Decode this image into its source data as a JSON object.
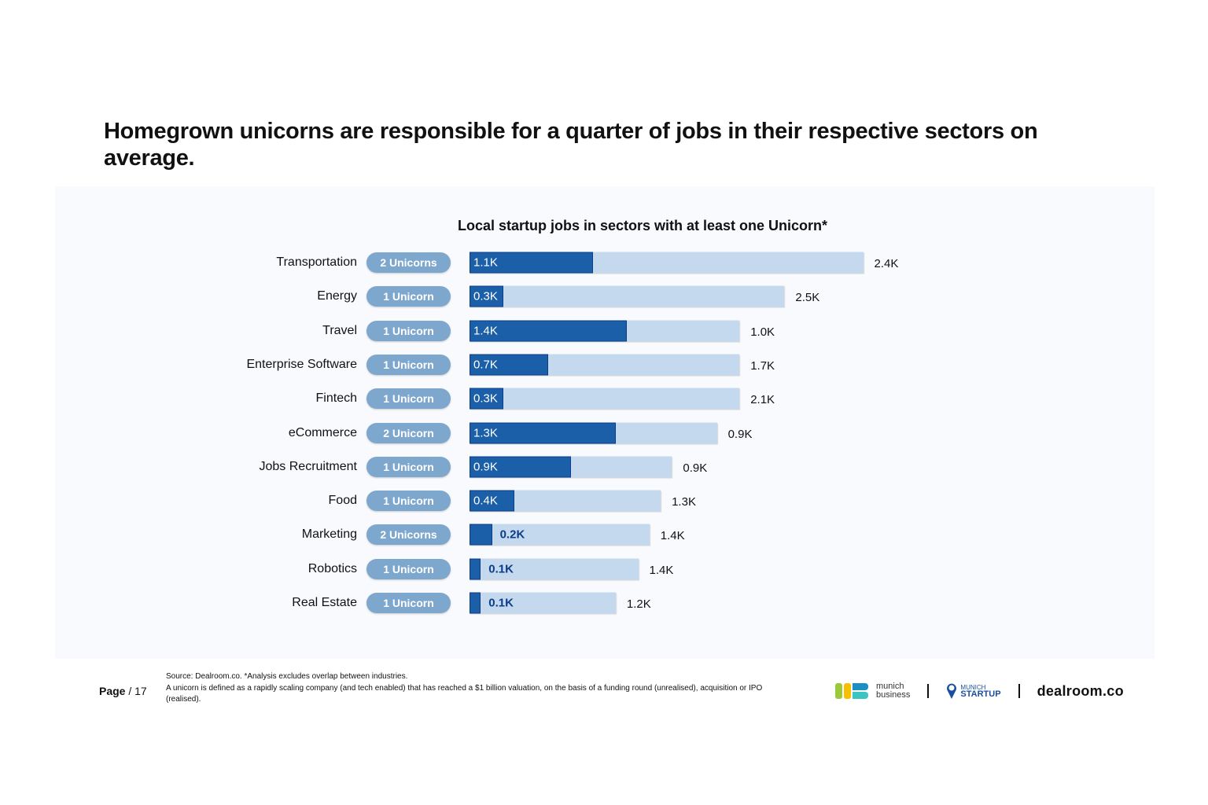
{
  "title": "Homegrown unicorns are responsible for a quarter of jobs in their respective sectors on average.",
  "chart_data": {
    "type": "bar",
    "orientation": "horizontal",
    "stacked": true,
    "title": "Local startup jobs in sectors with at least one Unicorn*",
    "unit": "K",
    "categories": [
      "Transportation",
      "Energy",
      "Travel",
      "Enterprise Software",
      "Fintech",
      "eCommerce",
      "Jobs Recruitment",
      "Food",
      "Marketing",
      "Robotics",
      "Real Estate"
    ],
    "unicorn_badges": [
      "2 Unicorns",
      "1 Unicorn",
      "1 Unicorn",
      "1 Unicorn",
      "1 Unicorn",
      "2 Unicorn",
      "1 Unicorn",
      "1 Unicorn",
      "2 Unicorns",
      "1 Unicorn",
      "1 Unicorn"
    ],
    "series": [
      {
        "values": [
          1.1,
          0.3,
          1.4,
          0.7,
          0.3,
          1.3,
          0.9,
          0.4,
          0.2,
          0.1,
          0.1
        ],
        "labels": [
          "1.1K",
          "0.3K",
          "1.4K",
          "0.7K",
          "0.3K",
          "1.3K",
          "0.9K",
          "0.4K",
          "0.2K",
          "0.1K",
          "0.1K"
        ],
        "color": "#1a5fa8"
      },
      {
        "values": [
          2.4,
          2.5,
          1.0,
          1.7,
          2.1,
          0.9,
          0.9,
          1.3,
          1.4,
          1.4,
          1.2
        ],
        "labels": [
          "2.4K",
          "2.5K",
          "1.0K",
          "1.7K",
          "2.1K",
          "0.9K",
          "0.9K",
          "1.3K",
          "1.4K",
          "1.4K",
          "1.2K"
        ],
        "color": "#c5d9ee"
      }
    ],
    "badge_color": "#7ea7ce",
    "grid": false,
    "legend": "none"
  },
  "footer": {
    "page_label": "Page",
    "page_number": "/ 17",
    "source": "Source: Dealroom.co. *Analysis excludes overlap between industries.",
    "definition": "A unicorn is defined as a rapidly scaling company (and tech enabled) that has reached a $1 billion valuation, on the basis of a funding round (unrealised), acquisition or IPO (realised).",
    "logos": {
      "munich_business_1": "munich",
      "munich_business_2": "business",
      "munich_startup_1": "MUNICH",
      "munich_startup_2": "STARTUP",
      "dealroom": "dealroom.co"
    }
  }
}
